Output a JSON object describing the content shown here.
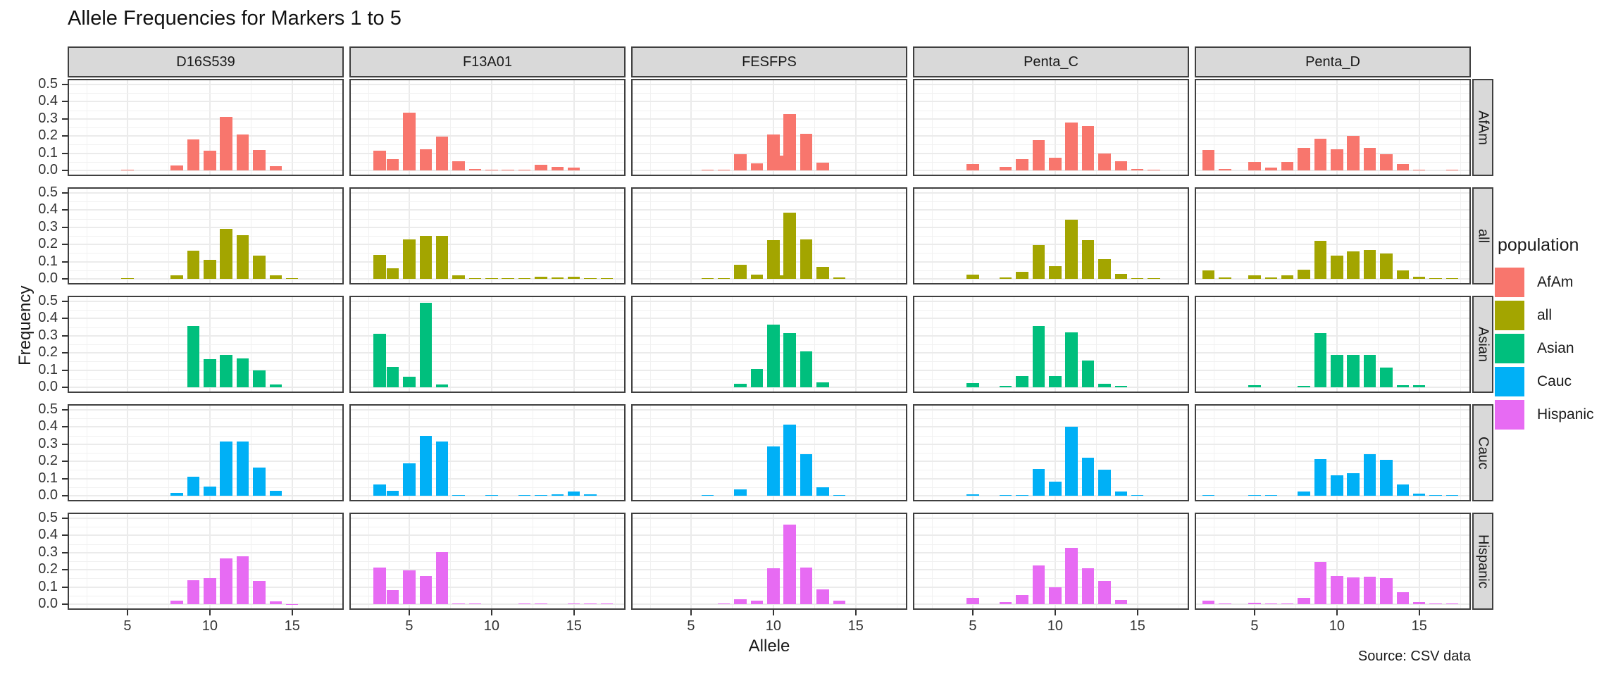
{
  "chart_data": {
    "type": "bar",
    "title": "Allele Frequencies for Markers 1 to 5",
    "xlabel": "Allele",
    "ylabel": "Frequency",
    "caption": "Source: CSV data",
    "facet_cols": [
      "D16S539",
      "F13A01",
      "FESFPS",
      "Penta_C",
      "Penta_D"
    ],
    "facet_rows": [
      "AfAm",
      "all",
      "Asian",
      "Cauc",
      "Hispanic"
    ],
    "x_domain": [
      1.45,
      18.05
    ],
    "x_ticks": [
      5,
      10,
      15
    ],
    "x_minor": [
      2.5,
      7.5,
      12.5,
      17.5
    ],
    "y_domain": [
      0,
      0.5
    ],
    "y_ticks": [
      0.5,
      0.4,
      0.3,
      0.2,
      0.1,
      0.0
    ],
    "y_tick_labels": [
      "0.5",
      "0.4",
      "0.3",
      "0.2",
      "0.1",
      "0.0"
    ],
    "y_minor": [
      0.45,
      0.35,
      0.25,
      0.15,
      0.05
    ],
    "bar_width_units": 0.75,
    "grid": true,
    "legend_position": "right",
    "legend": {
      "title": "population",
      "entries": [
        {
          "label": "AfAm",
          "color": "#F8766D"
        },
        {
          "label": "all",
          "color": "#A3A500"
        },
        {
          "label": "Asian",
          "color": "#00BF7D"
        },
        {
          "label": "Cauc",
          "color": "#00B0F6"
        },
        {
          "label": "Hispanic",
          "color": "#E76BF3"
        }
      ]
    },
    "colors": {
      "AfAm": "#F8766D",
      "all": "#A3A500",
      "Asian": "#00BF7D",
      "Cauc": "#00B0F6",
      "Hispanic": "#E76BF3"
    },
    "panels": [
      {
        "col": "D16S539",
        "row": "AfAm",
        "bars": [
          [
            5,
            0.005
          ],
          [
            8,
            0.03
          ],
          [
            9,
            0.18
          ],
          [
            10,
            0.115
          ],
          [
            11,
            0.31
          ],
          [
            12,
            0.21
          ],
          [
            13,
            0.12
          ],
          [
            14,
            0.025
          ]
        ]
      },
      {
        "col": "F13A01",
        "row": "AfAm",
        "bars": [
          [
            3.2,
            0.115
          ],
          [
            4,
            0.065
          ],
          [
            5,
            0.335
          ],
          [
            6,
            0.125
          ],
          [
            7,
            0.195
          ],
          [
            8,
            0.055
          ],
          [
            9,
            0.01
          ],
          [
            10,
            0.004
          ],
          [
            11,
            0.004
          ],
          [
            12,
            0.004
          ],
          [
            13,
            0.032
          ],
          [
            14,
            0.02
          ],
          [
            15,
            0.015
          ]
        ]
      },
      {
        "col": "FESFPS",
        "row": "AfAm",
        "bars": [
          [
            6,
            0.004
          ],
          [
            7,
            0.004
          ],
          [
            8,
            0.095
          ],
          [
            9,
            0.04
          ],
          [
            10,
            0.21
          ],
          [
            10.3,
            0.085
          ],
          [
            11,
            0.33
          ],
          [
            12,
            0.215
          ],
          [
            13,
            0.045
          ]
        ]
      },
      {
        "col": "Penta_C",
        "row": "AfAm",
        "bars": [
          [
            5,
            0.035
          ],
          [
            7,
            0.022
          ],
          [
            8,
            0.065
          ],
          [
            9,
            0.175
          ],
          [
            10,
            0.075
          ],
          [
            11,
            0.28
          ],
          [
            12,
            0.26
          ],
          [
            13,
            0.1
          ],
          [
            14,
            0.055
          ],
          [
            15,
            0.01
          ],
          [
            16,
            0.006
          ]
        ]
      },
      {
        "col": "Penta_D",
        "row": "AfAm",
        "bars": [
          [
            2.2,
            0.12
          ],
          [
            3.2,
            0.01
          ],
          [
            5,
            0.05
          ],
          [
            6,
            0.015
          ],
          [
            7,
            0.05
          ],
          [
            8,
            0.13
          ],
          [
            9,
            0.185
          ],
          [
            10,
            0.125
          ],
          [
            11,
            0.2
          ],
          [
            12,
            0.13
          ],
          [
            13,
            0.095
          ],
          [
            14,
            0.035
          ],
          [
            15,
            0.006
          ],
          [
            17,
            0.005
          ]
        ]
      },
      {
        "col": "D16S539",
        "row": "all",
        "bars": [
          [
            5,
            0.003
          ],
          [
            8,
            0.02
          ],
          [
            9,
            0.165
          ],
          [
            10,
            0.11
          ],
          [
            11,
            0.29
          ],
          [
            12,
            0.255
          ],
          [
            13,
            0.135
          ],
          [
            14,
            0.02
          ],
          [
            15,
            0.003
          ]
        ]
      },
      {
        "col": "F13A01",
        "row": "all",
        "bars": [
          [
            3.2,
            0.14
          ],
          [
            4,
            0.06
          ],
          [
            5,
            0.23
          ],
          [
            6,
            0.25
          ],
          [
            7,
            0.25
          ],
          [
            8,
            0.02
          ],
          [
            9,
            0.004
          ],
          [
            10,
            0.004
          ],
          [
            11,
            0.004
          ],
          [
            12,
            0.004
          ],
          [
            13,
            0.012
          ],
          [
            14,
            0.008
          ],
          [
            15,
            0.012
          ],
          [
            16,
            0.005
          ],
          [
            17,
            0.003
          ]
        ]
      },
      {
        "col": "FESFPS",
        "row": "all",
        "bars": [
          [
            6,
            0.003
          ],
          [
            7,
            0.003
          ],
          [
            8,
            0.08
          ],
          [
            9,
            0.025
          ],
          [
            10,
            0.225
          ],
          [
            10.3,
            0.02
          ],
          [
            11,
            0.385
          ],
          [
            12,
            0.23
          ],
          [
            13,
            0.07
          ],
          [
            14,
            0.008
          ]
        ]
      },
      {
        "col": "Penta_C",
        "row": "all",
        "bars": [
          [
            5,
            0.025
          ],
          [
            7,
            0.01
          ],
          [
            8,
            0.04
          ],
          [
            9,
            0.195
          ],
          [
            10,
            0.075
          ],
          [
            11,
            0.345
          ],
          [
            12,
            0.225
          ],
          [
            13,
            0.115
          ],
          [
            14,
            0.028
          ],
          [
            15,
            0.005
          ],
          [
            16,
            0.003
          ]
        ]
      },
      {
        "col": "Penta_D",
        "row": "all",
        "bars": [
          [
            2.2,
            0.05
          ],
          [
            3.2,
            0.008
          ],
          [
            5,
            0.02
          ],
          [
            6,
            0.008
          ],
          [
            7,
            0.02
          ],
          [
            8,
            0.055
          ],
          [
            9,
            0.22
          ],
          [
            10,
            0.135
          ],
          [
            11,
            0.16
          ],
          [
            12,
            0.17
          ],
          [
            13,
            0.148
          ],
          [
            14,
            0.05
          ],
          [
            15,
            0.012
          ],
          [
            16,
            0.004
          ],
          [
            17,
            0.004
          ]
        ]
      },
      {
        "col": "D16S539",
        "row": "Asian",
        "bars": [
          [
            9,
            0.355
          ],
          [
            10,
            0.165
          ],
          [
            11,
            0.19
          ],
          [
            12,
            0.17
          ],
          [
            13,
            0.1
          ],
          [
            14,
            0.015
          ]
        ]
      },
      {
        "col": "F13A01",
        "row": "Asian",
        "bars": [
          [
            3.2,
            0.31
          ],
          [
            4,
            0.12
          ],
          [
            5,
            0.06
          ],
          [
            6,
            0.49
          ],
          [
            7,
            0.015
          ]
        ]
      },
      {
        "col": "FESFPS",
        "row": "Asian",
        "bars": [
          [
            8,
            0.02
          ],
          [
            9,
            0.105
          ],
          [
            10,
            0.365
          ],
          [
            11,
            0.315
          ],
          [
            12,
            0.21
          ],
          [
            13,
            0.03
          ]
        ]
      },
      {
        "col": "Penta_C",
        "row": "Asian",
        "bars": [
          [
            5,
            0.025
          ],
          [
            7,
            0.008
          ],
          [
            8,
            0.065
          ],
          [
            9,
            0.355
          ],
          [
            10,
            0.065
          ],
          [
            11,
            0.32
          ],
          [
            12,
            0.155
          ],
          [
            13,
            0.02
          ],
          [
            14,
            0.01
          ]
        ]
      },
      {
        "col": "Penta_D",
        "row": "Asian",
        "bars": [
          [
            5,
            0.012
          ],
          [
            8,
            0.01
          ],
          [
            9,
            0.315
          ],
          [
            10,
            0.19
          ],
          [
            11,
            0.19
          ],
          [
            12,
            0.19
          ],
          [
            13,
            0.115
          ],
          [
            14,
            0.012
          ],
          [
            15,
            0.012
          ]
        ]
      },
      {
        "col": "D16S539",
        "row": "Cauc",
        "bars": [
          [
            8,
            0.015
          ],
          [
            9,
            0.11
          ],
          [
            10,
            0.055
          ],
          [
            11,
            0.315
          ],
          [
            12,
            0.315
          ],
          [
            13,
            0.165
          ],
          [
            14,
            0.03
          ]
        ]
      },
      {
        "col": "F13A01",
        "row": "Cauc",
        "bars": [
          [
            3.2,
            0.065
          ],
          [
            4,
            0.03
          ],
          [
            5,
            0.19
          ],
          [
            6,
            0.35
          ],
          [
            7,
            0.315
          ],
          [
            8,
            0.005
          ],
          [
            10,
            0.003
          ],
          [
            12,
            0.003
          ],
          [
            13,
            0.003
          ],
          [
            14,
            0.01
          ],
          [
            15,
            0.025
          ],
          [
            16,
            0.008
          ]
        ]
      },
      {
        "col": "FESFPS",
        "row": "Cauc",
        "bars": [
          [
            6,
            0.003
          ],
          [
            8,
            0.035
          ],
          [
            10,
            0.285
          ],
          [
            11,
            0.415
          ],
          [
            12,
            0.24
          ],
          [
            13,
            0.05
          ],
          [
            14,
            0.005
          ]
        ]
      },
      {
        "col": "Penta_C",
        "row": "Cauc",
        "bars": [
          [
            5,
            0.008
          ],
          [
            7,
            0.005
          ],
          [
            8,
            0.006
          ],
          [
            9,
            0.155
          ],
          [
            10,
            0.08
          ],
          [
            11,
            0.4
          ],
          [
            12,
            0.22
          ],
          [
            13,
            0.15
          ],
          [
            14,
            0.025
          ],
          [
            15,
            0.005
          ]
        ]
      },
      {
        "col": "Penta_D",
        "row": "Cauc",
        "bars": [
          [
            2.2,
            0.004
          ],
          [
            5,
            0.005
          ],
          [
            6,
            0.006
          ],
          [
            8,
            0.025
          ],
          [
            9,
            0.215
          ],
          [
            10,
            0.12
          ],
          [
            11,
            0.13
          ],
          [
            12,
            0.24
          ],
          [
            13,
            0.21
          ],
          [
            14,
            0.065
          ],
          [
            15,
            0.012
          ],
          [
            16,
            0.006
          ],
          [
            17,
            0.004
          ]
        ]
      },
      {
        "col": "D16S539",
        "row": "Hispanic",
        "bars": [
          [
            8,
            0.02
          ],
          [
            9,
            0.14
          ],
          [
            10,
            0.15
          ],
          [
            11,
            0.265
          ],
          [
            12,
            0.28
          ],
          [
            13,
            0.135
          ],
          [
            14,
            0.015
          ],
          [
            15,
            0.002
          ]
        ]
      },
      {
        "col": "F13A01",
        "row": "Hispanic",
        "bars": [
          [
            3.2,
            0.215
          ],
          [
            4,
            0.08
          ],
          [
            5,
            0.195
          ],
          [
            6,
            0.165
          ],
          [
            7,
            0.305
          ],
          [
            8,
            0.005
          ],
          [
            9,
            0.005
          ],
          [
            12,
            0.005
          ],
          [
            13,
            0.004
          ],
          [
            15,
            0.005
          ],
          [
            16,
            0.004
          ],
          [
            17,
            0.003
          ]
        ]
      },
      {
        "col": "FESFPS",
        "row": "Hispanic",
        "bars": [
          [
            7,
            0.005
          ],
          [
            8,
            0.03
          ],
          [
            9,
            0.02
          ],
          [
            10,
            0.21
          ],
          [
            11,
            0.465
          ],
          [
            12,
            0.215
          ],
          [
            13,
            0.085
          ],
          [
            14,
            0.02
          ]
        ]
      },
      {
        "col": "Penta_C",
        "row": "Hispanic",
        "bars": [
          [
            5,
            0.035
          ],
          [
            7,
            0.012
          ],
          [
            8,
            0.055
          ],
          [
            9,
            0.225
          ],
          [
            10,
            0.1
          ],
          [
            11,
            0.33
          ],
          [
            12,
            0.21
          ],
          [
            13,
            0.135
          ],
          [
            14,
            0.025
          ]
        ]
      },
      {
        "col": "Penta_D",
        "row": "Hispanic",
        "bars": [
          [
            2.2,
            0.02
          ],
          [
            3.2,
            0.005
          ],
          [
            5,
            0.01
          ],
          [
            6,
            0.004
          ],
          [
            7,
            0.004
          ],
          [
            8,
            0.035
          ],
          [
            9,
            0.245
          ],
          [
            10,
            0.165
          ],
          [
            11,
            0.155
          ],
          [
            12,
            0.16
          ],
          [
            13,
            0.15
          ],
          [
            14,
            0.07
          ],
          [
            15,
            0.012
          ],
          [
            16,
            0.005
          ],
          [
            17,
            0.003
          ]
        ]
      }
    ]
  }
}
